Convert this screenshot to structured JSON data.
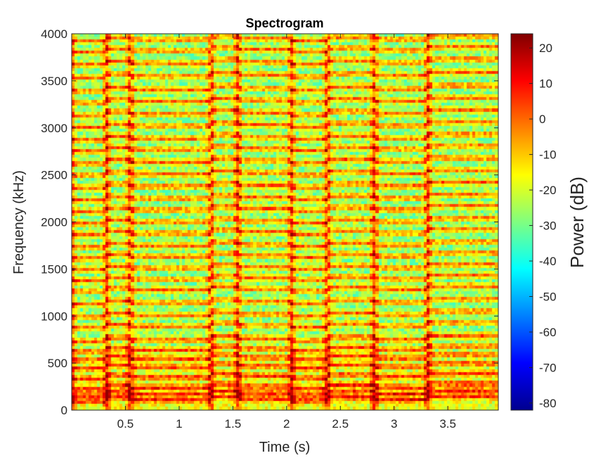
{
  "chart_data": {
    "type": "heatmap",
    "title": "Spectrogram",
    "xlabel": "Time (s)",
    "ylabel": "Frequency (kHz)",
    "xlim": [
      0.0,
      3.97
    ],
    "ylim": [
      0,
      4000
    ],
    "xticks": [
      0.5,
      1,
      1.5,
      2,
      2.5,
      3,
      3.5
    ],
    "xtick_labels": [
      "0.5",
      "1",
      "1.5",
      "2",
      "2.5",
      "3",
      "3.5"
    ],
    "yticks": [
      0,
      500,
      1000,
      1500,
      2000,
      2500,
      3000,
      3500,
      4000
    ],
    "ytick_labels": [
      "0",
      "500",
      "1000",
      "1500",
      "2000",
      "2500",
      "3000",
      "3500",
      "4000"
    ],
    "colormap": "jet",
    "colorbar": {
      "label": "Power (dB)",
      "clim": [
        -82,
        24
      ],
      "ticks": [
        20,
        10,
        0,
        -10,
        -20,
        -30,
        -40,
        -50,
        -60,
        -70,
        -80
      ],
      "tick_labels": [
        "20",
        "10",
        "0",
        "-10",
        "-20",
        "-30",
        "-40",
        "-50",
        "-60",
        "-70",
        "-80"
      ]
    },
    "onsets_s": [
      0.0,
      0.33,
      0.55,
      1.3,
      1.55,
      2.05,
      2.38,
      2.82,
      3.32
    ],
    "harmonic_bands_hz": [
      120,
      180,
      250,
      360,
      470,
      560,
      650,
      760,
      900,
      1020,
      1150,
      1290,
      1400,
      1520,
      1640,
      1760,
      1890,
      2010,
      2140,
      2260,
      2390,
      2520,
      2650,
      2780,
      2900,
      3030,
      3160,
      3290,
      3420,
      3560,
      3700,
      3830,
      3950
    ],
    "power_range_db": [
      -45,
      22
    ],
    "grid": false,
    "colorbar_position": "right"
  }
}
